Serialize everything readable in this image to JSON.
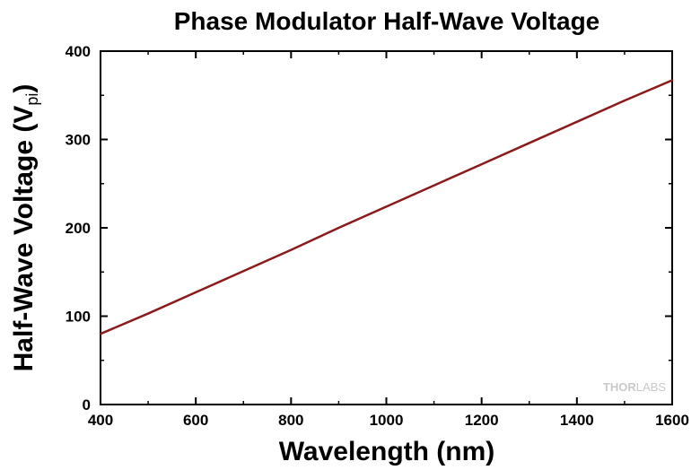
{
  "chart_data": {
    "type": "line",
    "title": "Phase Modulator Half-Wave Voltage",
    "xlabel": "Wavelength (nm)",
    "ylabel": "Half-Wave Voltage (V",
    "ylabel_subscript": "pi",
    "ylabel_suffix": ")",
    "xlim": [
      400,
      1600
    ],
    "ylim": [
      0,
      400
    ],
    "xticks": [
      400,
      600,
      800,
      1000,
      1200,
      1400,
      1600
    ],
    "yticks": [
      0,
      100,
      200,
      300,
      400
    ],
    "grid": false,
    "legend": "none",
    "series": [
      {
        "color": "#8b1a1a",
        "x": [
          400,
          500,
          600,
          700,
          800,
          900,
          1000,
          1100,
          1200,
          1300,
          1400,
          1500,
          1600
        ],
        "y": [
          80,
          103,
          127,
          151,
          175,
          200,
          224,
          248,
          272,
          296,
          320,
          344,
          367
        ]
      }
    ]
  },
  "watermark": {
    "text_bold": "THOR",
    "text_light": "LABS"
  },
  "colors": {
    "line": "#8b1a1a",
    "axis": "#000000",
    "watermark": "#c9c9c9"
  }
}
